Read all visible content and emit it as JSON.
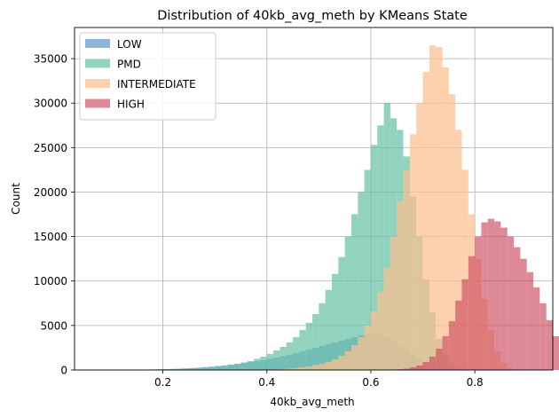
{
  "chart_data": {
    "type": "bar",
    "subtype": "overlaid-histogram",
    "title": "Distribution of 40kb_avg_meth by KMeans State",
    "xlabel": "40kb_avg_meth",
    "ylabel": "Count",
    "xlim": [
      0.03,
      0.95
    ],
    "ylim": [
      0,
      38500
    ],
    "xticks": [
      0.2,
      0.4,
      0.6,
      0.8
    ],
    "xtick_labels": [
      "0.2",
      "0.4",
      "0.6",
      "0.8"
    ],
    "yticks": [
      0,
      5000,
      10000,
      15000,
      20000,
      25000,
      30000,
      35000
    ],
    "ytick_labels": [
      "0",
      "5000",
      "10000",
      "15000",
      "20000",
      "25000",
      "30000",
      "35000"
    ],
    "grid": true,
    "legend_position": "top-left",
    "series": [
      {
        "name": "LOW",
        "color": "#6699cc",
        "opacity": 0.72,
        "bin_start": 0.05,
        "bin_width": 0.0125,
        "values": [
          0,
          0,
          0,
          0,
          0,
          0,
          0,
          0,
          30,
          40,
          60,
          80,
          100,
          120,
          150,
          180,
          220,
          260,
          320,
          380,
          450,
          520,
          600,
          700,
          800,
          900,
          1000,
          1100,
          1250,
          1400,
          1550,
          1700,
          1900,
          2100,
          2300,
          2500,
          2700,
          2900,
          3100,
          3300,
          3500,
          3700,
          3900,
          4050,
          4150,
          4000,
          3700,
          3300,
          2800,
          2300,
          1800,
          1300,
          900,
          600,
          350,
          200,
          100,
          50,
          20,
          10,
          0
        ]
      },
      {
        "name": "PMD",
        "color": "#66c2a5",
        "opacity": 0.72,
        "bin_start": 0.05,
        "bin_width": 0.0125,
        "values": [
          0,
          0,
          0,
          0,
          0,
          0,
          0,
          0,
          0,
          0,
          0,
          10,
          50,
          80,
          100,
          130,
          160,
          200,
          250,
          300,
          380,
          450,
          550,
          700,
          850,
          1000,
          1250,
          1500,
          1800,
          2200,
          2600,
          3100,
          3700,
          4500,
          5300,
          6300,
          7500,
          9000,
          10800,
          12700,
          15000,
          17500,
          20000,
          22500,
          25300,
          27500,
          30000,
          28300,
          27000,
          24000,
          19500,
          15000,
          10200,
          6500,
          3500,
          1600,
          600,
          200,
          50,
          10,
          0
        ]
      },
      {
        "name": "INTERMEDIATE",
        "color": "#fdbf8f",
        "opacity": 0.72,
        "bin_start": 0.05,
        "bin_width": 0.0125,
        "values": [
          0,
          0,
          0,
          0,
          0,
          0,
          0,
          0,
          0,
          0,
          0,
          0,
          0,
          0,
          0,
          0,
          0,
          0,
          0,
          0,
          0,
          0,
          0,
          0,
          0,
          0,
          0,
          10,
          30,
          60,
          100,
          150,
          220,
          300,
          400,
          550,
          700,
          900,
          1200,
          1600,
          2100,
          2800,
          3700,
          5000,
          6600,
          8800,
          11500,
          15000,
          19000,
          22500,
          26500,
          30000,
          33500,
          36500,
          36300,
          34000,
          31000,
          27000,
          22500,
          17500,
          12500,
          8000,
          4500,
          2100,
          800,
          200,
          50,
          0
        ]
      },
      {
        "name": "HIGH",
        "color": "#cc4c5e",
        "opacity": 0.65,
        "bin_start": 0.05,
        "bin_width": 0.0125,
        "values": [
          0,
          0,
          0,
          0,
          0,
          0,
          0,
          0,
          0,
          0,
          0,
          0,
          0,
          0,
          0,
          0,
          0,
          0,
          0,
          0,
          0,
          0,
          0,
          0,
          0,
          0,
          0,
          0,
          0,
          0,
          0,
          0,
          0,
          0,
          0,
          0,
          0,
          0,
          0,
          0,
          0,
          0,
          0,
          0,
          0,
          0,
          10,
          30,
          80,
          150,
          300,
          500,
          900,
          1500,
          2400,
          3800,
          5500,
          7800,
          10200,
          12800,
          15000,
          16600,
          17000,
          16700,
          16000,
          15000,
          13800,
          12500,
          11000,
          9300,
          7500,
          5600,
          3800,
          2300,
          1100,
          400,
          100,
          20
        ]
      }
    ]
  }
}
